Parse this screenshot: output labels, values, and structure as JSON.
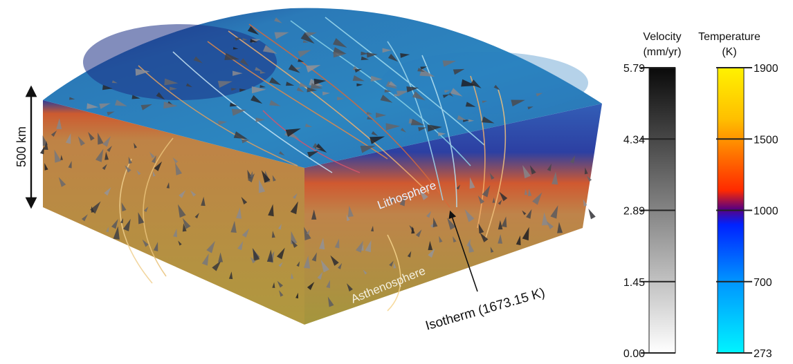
{
  "figure": {
    "scale_bar_label": "500 km",
    "layers": {
      "upper": "Lithosphere",
      "lower": "Asthenosphere"
    },
    "isotherm_label": "Isotherm (1673.15  K)"
  },
  "velocity_bar": {
    "title_line1": "Velocity",
    "title_line2": "(mm/yr)",
    "ticks": [
      "5.79",
      "4.34",
      "2.89",
      "1.45",
      "0.00"
    ],
    "gradient": [
      "#0a0a0a",
      "#ffffff"
    ]
  },
  "temperature_bar": {
    "title_line1": "Temperature",
    "title_line2": "(K)",
    "ticks": [
      "1900",
      "1500",
      "1000",
      "700",
      "273"
    ],
    "gradient_stops": [
      "#fff200",
      "#ffb300",
      "#ff6a00",
      "#ff2a00",
      "#5a0080",
      "#0020ff",
      "#0090ff",
      "#00f0ff"
    ]
  },
  "colors": {
    "lithosphere_top": "#1b6ea8",
    "asthenosphere": "#b8902f",
    "hot_band": "#d4551e",
    "cold_band": "#1a2f9a"
  }
}
